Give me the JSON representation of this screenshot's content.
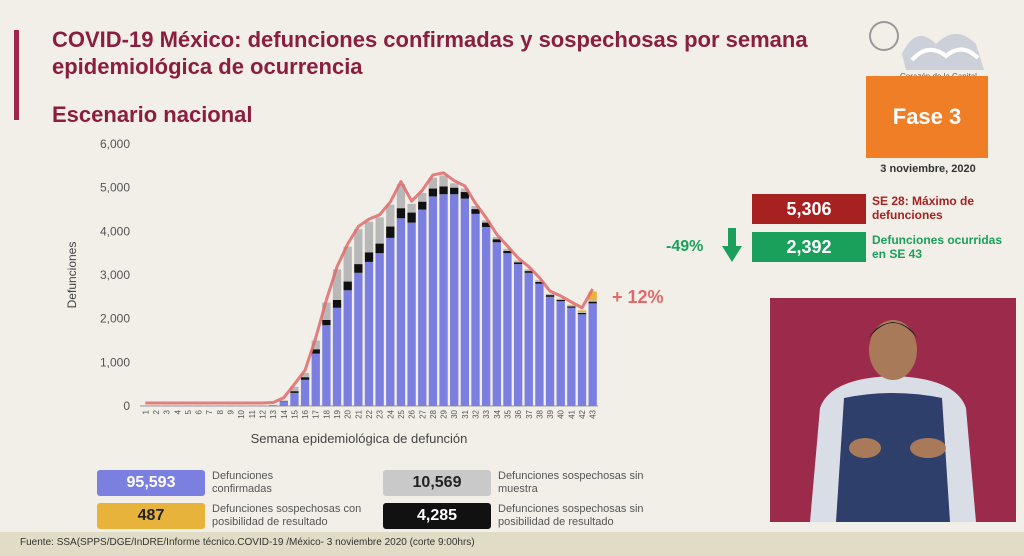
{
  "header": {
    "title": "COVID-19 México: defunciones confirmadas y sospechosas por semana epidemiológica de ocurrencia",
    "subtitle": "Escenario nacional"
  },
  "logo": {
    "caption": "Corazón de la Capital"
  },
  "phase": {
    "label": "Fase 3",
    "date": "3 noviembre, 2020"
  },
  "stats": {
    "max_value": "5,306",
    "max_label": "SE 28: Máximo de defunciones",
    "change_pct": "-49%",
    "current_value": "2,392",
    "current_label": "Defunciones ocurridas en SE 43",
    "recent_change": "+ 12%"
  },
  "legend": [
    {
      "value": "95,593",
      "label": "Defunciones confirmadas",
      "color": "#7b7fe0"
    },
    {
      "value": "487",
      "label": "Defunciones sospechosas con posibilidad de resultado",
      "color": "#e8b33a"
    },
    {
      "value": "10,569",
      "label": "Defunciones sospechosas sin muestra",
      "color": "#b8b8b8"
    },
    {
      "value": "4,285",
      "label": "Defunciones sospechosas sin posibilidad de resultado",
      "color": "#111111"
    }
  ],
  "footer": "Fuente: SSA(SPPS/DGE/InDRE/Informe técnico.COVID-19 /México- 3 noviembre 2020 (corte 9:00hrs)",
  "chart_data": {
    "type": "bar",
    "stacked": true,
    "xlabel": "Semana epidemiológica de defunción",
    "ylabel": "Defunciones",
    "ylim": [
      0,
      6000
    ],
    "yticks": [
      "0",
      "1,000",
      "2,000",
      "3,000",
      "4,000",
      "5,000",
      "6,000"
    ],
    "categories": [
      "1",
      "2",
      "3",
      "4",
      "5",
      "6",
      "7",
      "8",
      "9",
      "10",
      "11",
      "12",
      "13",
      "14",
      "15",
      "16",
      "17",
      "18",
      "19",
      "20",
      "21",
      "22",
      "23",
      "24",
      "25",
      "26",
      "27",
      "28",
      "29",
      "30",
      "31",
      "32",
      "33",
      "34",
      "35",
      "36",
      "37",
      "38",
      "39",
      "40",
      "41",
      "42",
      "43"
    ],
    "series": [
      {
        "name": "Defunciones confirmadas",
        "color": "#7b7fe0",
        "values": [
          10,
          10,
          10,
          10,
          10,
          10,
          10,
          10,
          10,
          10,
          10,
          10,
          20,
          100,
          300,
          600,
          1200,
          1850,
          2250,
          2650,
          3050,
          3300,
          3500,
          3850,
          4300,
          4200,
          4500,
          4800,
          4850,
          4850,
          4750,
          4400,
          4100,
          3750,
          3500,
          3250,
          3050,
          2800,
          2500,
          2400,
          2250,
          2100,
          2350
        ]
      },
      {
        "name": "Defunciones sospechosas sin posibilidad de resultado",
        "color": "#111111",
        "values": [
          0,
          0,
          0,
          0,
          0,
          0,
          0,
          0,
          0,
          0,
          0,
          0,
          0,
          10,
          40,
          60,
          100,
          120,
          180,
          200,
          200,
          220,
          220,
          260,
          230,
          230,
          180,
          180,
          180,
          150,
          150,
          110,
          100,
          70,
          50,
          40,
          40,
          40,
          40,
          30,
          30,
          30,
          40
        ]
      },
      {
        "name": "Defunciones sospechosas sin muestra",
        "color": "#b8b8b8",
        "values": [
          0,
          0,
          0,
          0,
          0,
          0,
          0,
          0,
          0,
          0,
          0,
          0,
          0,
          20,
          100,
          100,
          200,
          400,
          700,
          800,
          800,
          700,
          600,
          500,
          550,
          200,
          200,
          250,
          250,
          100,
          80,
          70,
          50,
          50,
          50,
          40,
          40,
          40,
          30,
          30,
          20,
          20,
          30
        ]
      },
      {
        "name": "Defunciones sospechosas con posibilidad de resultado",
        "color": "#e8b33a",
        "values": [
          0,
          0,
          0,
          0,
          0,
          0,
          0,
          0,
          0,
          0,
          0,
          0,
          0,
          0,
          0,
          0,
          0,
          0,
          0,
          0,
          0,
          0,
          0,
          0,
          0,
          0,
          0,
          0,
          0,
          0,
          0,
          0,
          0,
          0,
          0,
          0,
          0,
          0,
          0,
          0,
          20,
          40,
          200
        ]
      }
    ],
    "trend_line": {
      "color": "#e06a6a"
    }
  }
}
